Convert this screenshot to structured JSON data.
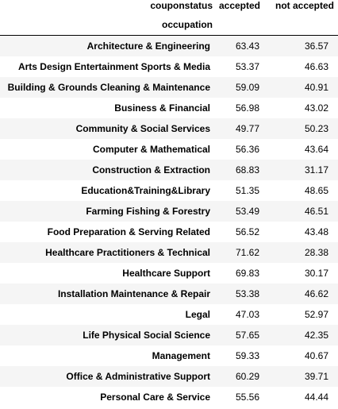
{
  "table": {
    "columns_name": "couponstatus",
    "index_name": "occupation",
    "columns": [
      "accepted",
      "not accepted"
    ],
    "rows": [
      {
        "label": "Architecture & Engineering",
        "values": [
          "63.43",
          "36.57"
        ]
      },
      {
        "label": "Arts Design Entertainment Sports & Media",
        "values": [
          "53.37",
          "46.63"
        ]
      },
      {
        "label": "Building & Grounds Cleaning & Maintenance",
        "values": [
          "59.09",
          "40.91"
        ]
      },
      {
        "label": "Business & Financial",
        "values": [
          "56.98",
          "43.02"
        ]
      },
      {
        "label": "Community & Social Services",
        "values": [
          "49.77",
          "50.23"
        ]
      },
      {
        "label": "Computer & Mathematical",
        "values": [
          "56.36",
          "43.64"
        ]
      },
      {
        "label": "Construction & Extraction",
        "values": [
          "68.83",
          "31.17"
        ]
      },
      {
        "label": "Education&Training&Library",
        "values": [
          "51.35",
          "48.65"
        ]
      },
      {
        "label": "Farming Fishing & Forestry",
        "values": [
          "53.49",
          "46.51"
        ]
      },
      {
        "label": "Food Preparation & Serving Related",
        "values": [
          "56.52",
          "43.48"
        ]
      },
      {
        "label": "Healthcare Practitioners & Technical",
        "values": [
          "71.62",
          "28.38"
        ]
      },
      {
        "label": "Healthcare Support",
        "values": [
          "69.83",
          "30.17"
        ]
      },
      {
        "label": "Installation Maintenance & Repair",
        "values": [
          "53.38",
          "46.62"
        ]
      },
      {
        "label": "Legal",
        "values": [
          "47.03",
          "52.97"
        ]
      },
      {
        "label": "Life Physical Social Science",
        "values": [
          "57.65",
          "42.35"
        ]
      },
      {
        "label": "Management",
        "values": [
          "59.33",
          "40.67"
        ]
      },
      {
        "label": "Office & Administrative Support",
        "values": [
          "60.29",
          "39.71"
        ]
      },
      {
        "label": "Personal Care & Service",
        "values": [
          "55.56",
          "44.44"
        ]
      }
    ]
  },
  "colors": {
    "row_stripe": "#f5f5f5",
    "row_base": "#ffffff",
    "header_rule": "#000000",
    "text": "#000000"
  }
}
